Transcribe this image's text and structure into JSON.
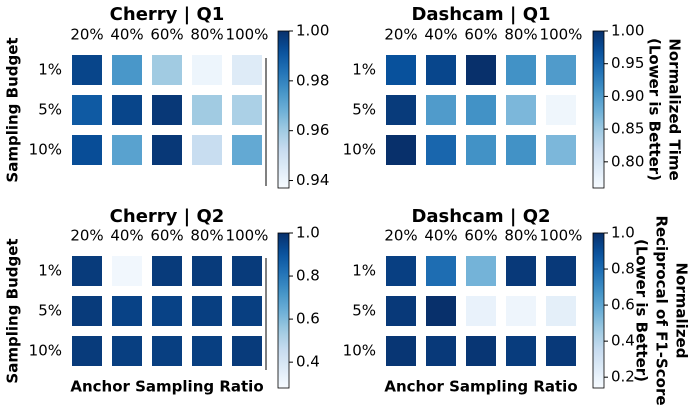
{
  "chart_data": [
    {
      "type": "heatmap",
      "title": "Cherry | Q1",
      "colormap": "Blues",
      "categories": [
        "20%",
        "40%",
        "60%",
        "80%",
        "100%"
      ],
      "rows": [
        "1%",
        "5%",
        "10%"
      ],
      "values": [
        [
          0.995,
          0.975,
          0.96,
          0.94,
          0.945
        ],
        [
          0.99,
          0.995,
          0.998,
          0.96,
          0.958
        ],
        [
          0.993,
          0.972,
          0.998,
          0.952,
          0.97
        ]
      ],
      "clim": [
        0.937,
        1.0
      ],
      "cticks": [
        0.94,
        0.96,
        0.98,
        {
          "value": 1,
          "label": "1.00"
        }
      ],
      "y_label": "Sampling Budget"
    },
    {
      "type": "heatmap",
      "title": "Dashcam | Q1",
      "colormap": "Blues",
      "categories": [
        "20%",
        "40%",
        "60%",
        "80%",
        "100%"
      ],
      "rows": [
        "1%",
        "5%",
        "10%"
      ],
      "values": [
        [
          0.97,
          0.98,
          1.0,
          0.91,
          0.9
        ],
        [
          0.99,
          0.9,
          0.91,
          0.87,
          0.77
        ],
        [
          1.0,
          0.95,
          0.91,
          0.91,
          0.87
        ]
      ],
      "clim": [
        0.76,
        1.0
      ],
      "cticks": [
        {
          "value": 0.8,
          "label": "0.80"
        },
        0.85,
        {
          "value": 0.9,
          "label": "0.90"
        },
        0.95,
        {
          "value": 1,
          "label": "1.00"
        }
      ],
      "colorbar_label": [
        "Normalized Time",
        "(Lower is Better)"
      ]
    },
    {
      "type": "heatmap",
      "title": "Cherry | Q2",
      "colormap": "Blues",
      "categories": [
        "20%",
        "40%",
        "60%",
        "80%",
        "100%"
      ],
      "rows": [
        "1%",
        "5%",
        "10%"
      ],
      "values": [
        [
          0.97,
          0.3,
          0.97,
          0.97,
          0.97
        ],
        [
          0.97,
          0.95,
          0.95,
          0.96,
          0.96
        ],
        [
          0.97,
          0.96,
          0.96,
          0.96,
          0.97
        ]
      ],
      "clim": [
        0.28,
        1.0
      ],
      "cticks": [
        0.4,
        0.6,
        0.8,
        {
          "value": 1,
          "label": "1.0"
        }
      ],
      "y_label": "Sampling Budget",
      "x_label": "Anchor Sampling Ratio"
    },
    {
      "type": "heatmap",
      "title": "Dashcam | Q2",
      "colormap": "Blues",
      "categories": [
        "20%",
        "40%",
        "60%",
        "80%",
        "100%"
      ],
      "rows": [
        "1%",
        "5%",
        "10%"
      ],
      "values": [
        [
          0.95,
          0.8,
          0.55,
          0.97,
          0.97
        ],
        [
          0.97,
          1.0,
          0.2,
          0.18,
          0.22
        ],
        [
          0.98,
          0.97,
          0.98,
          0.96,
          0.97
        ]
      ],
      "clim": [
        0.14,
        1.0
      ],
      "cticks": [
        0.2,
        0.4,
        0.6,
        0.8,
        {
          "value": 1,
          "label": "1.0"
        }
      ],
      "x_label": "Anchor Sampling Ratio",
      "colorbar_label": [
        "Normalized",
        "Reciprocal of F1-Score",
        "(Lower is Better)"
      ]
    }
  ]
}
